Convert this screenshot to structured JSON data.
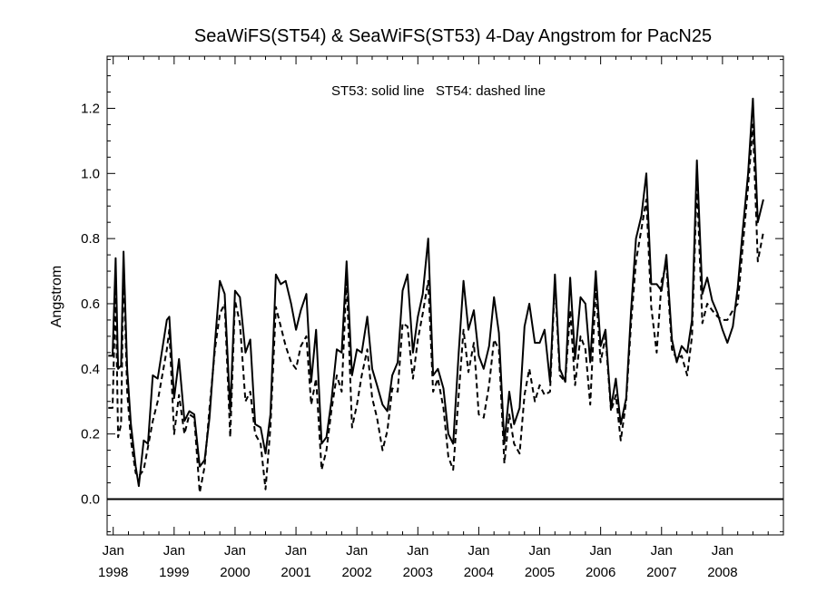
{
  "chart_data": {
    "type": "line",
    "title": "SeaWiFS(ST54) & SeaWiFS(ST53) 4-Day Angstrom for PacN25",
    "ylabel": "Angstrom",
    "xlabel": "",
    "annotation": "ST53: solid line   ST54: dashed line",
    "xlim": [
      1997.9,
      2009.0
    ],
    "ylim": [
      -0.11,
      1.36
    ],
    "yticks": [
      0.0,
      0.2,
      0.4,
      0.6,
      0.8,
      1.0,
      1.2
    ],
    "ytick_labels": [
      "0.0",
      "0.2",
      "0.4",
      "0.6",
      "0.8",
      "1.0",
      "1.2"
    ],
    "xticks": [
      {
        "value": 1998,
        "month": "Jan",
        "year": "1998"
      },
      {
        "value": 1999,
        "month": "Jan",
        "year": "1999"
      },
      {
        "value": 2000,
        "month": "Jan",
        "year": "2000"
      },
      {
        "value": 2001,
        "month": "Jan",
        "year": "2001"
      },
      {
        "value": 2002,
        "month": "Jan",
        "year": "2002"
      },
      {
        "value": 2003,
        "month": "Jan",
        "year": "2003"
      },
      {
        "value": 2004,
        "month": "Jan",
        "year": "2004"
      },
      {
        "value": 2005,
        "month": "Jan",
        "year": "2005"
      },
      {
        "value": 2006,
        "month": "Jan",
        "year": "2006"
      },
      {
        "value": 2007,
        "month": "Jan",
        "year": "2007"
      },
      {
        "value": 2008,
        "month": "Jan",
        "year": "2008"
      }
    ],
    "zero_line": 0.0,
    "grid": false,
    "series": [
      {
        "name": "ST53",
        "style": "solid",
        "color": "#000000",
        "points": [
          [
            1997.92,
            0.44
          ],
          [
            1997.99,
            0.44
          ],
          [
            1998.04,
            0.74
          ],
          [
            1998.08,
            0.4
          ],
          [
            1998.13,
            0.41
          ],
          [
            1998.17,
            0.76
          ],
          [
            1998.23,
            0.4
          ],
          [
            1998.29,
            0.23
          ],
          [
            1998.37,
            0.1
          ],
          [
            1998.42,
            0.04
          ],
          [
            1998.5,
            0.18
          ],
          [
            1998.57,
            0.17
          ],
          [
            1998.65,
            0.38
          ],
          [
            1998.73,
            0.37
          ],
          [
            1998.88,
            0.55
          ],
          [
            1998.92,
            0.56
          ],
          [
            1999.0,
            0.31
          ],
          [
            1999.08,
            0.43
          ],
          [
            1999.17,
            0.24
          ],
          [
            1999.25,
            0.27
          ],
          [
            1999.33,
            0.26
          ],
          [
            1999.42,
            0.1
          ],
          [
            1999.5,
            0.12
          ],
          [
            1999.58,
            0.25
          ],
          [
            1999.67,
            0.48
          ],
          [
            1999.75,
            0.67
          ],
          [
            1999.83,
            0.63
          ],
          [
            1999.92,
            0.27
          ],
          [
            2000.0,
            0.64
          ],
          [
            2000.08,
            0.62
          ],
          [
            2000.17,
            0.45
          ],
          [
            2000.25,
            0.49
          ],
          [
            2000.33,
            0.23
          ],
          [
            2000.42,
            0.22
          ],
          [
            2000.5,
            0.14
          ],
          [
            2000.58,
            0.26
          ],
          [
            2000.67,
            0.69
          ],
          [
            2000.75,
            0.66
          ],
          [
            2000.83,
            0.67
          ],
          [
            2000.92,
            0.6
          ],
          [
            2001.0,
            0.52
          ],
          [
            2001.08,
            0.58
          ],
          [
            2001.17,
            0.63
          ],
          [
            2001.25,
            0.36
          ],
          [
            2001.33,
            0.52
          ],
          [
            2001.42,
            0.17
          ],
          [
            2001.5,
            0.19
          ],
          [
            2001.58,
            0.3
          ],
          [
            2001.67,
            0.46
          ],
          [
            2001.75,
            0.45
          ],
          [
            2001.83,
            0.73
          ],
          [
            2001.92,
            0.38
          ],
          [
            2002.0,
            0.46
          ],
          [
            2002.08,
            0.45
          ],
          [
            2002.17,
            0.56
          ],
          [
            2002.25,
            0.4
          ],
          [
            2002.33,
            0.35
          ],
          [
            2002.42,
            0.29
          ],
          [
            2002.5,
            0.27
          ],
          [
            2002.58,
            0.38
          ],
          [
            2002.67,
            0.42
          ],
          [
            2002.75,
            0.64
          ],
          [
            2002.83,
            0.69
          ],
          [
            2002.92,
            0.45
          ],
          [
            2003.0,
            0.56
          ],
          [
            2003.08,
            0.63
          ],
          [
            2003.17,
            0.8
          ],
          [
            2003.25,
            0.38
          ],
          [
            2003.33,
            0.4
          ],
          [
            2003.42,
            0.34
          ],
          [
            2003.5,
            0.2
          ],
          [
            2003.58,
            0.17
          ],
          [
            2003.67,
            0.45
          ],
          [
            2003.75,
            0.67
          ],
          [
            2003.83,
            0.52
          ],
          [
            2003.92,
            0.58
          ],
          [
            2004.0,
            0.44
          ],
          [
            2004.08,
            0.4
          ],
          [
            2004.17,
            0.47
          ],
          [
            2004.25,
            0.62
          ],
          [
            2004.33,
            0.51
          ],
          [
            2004.42,
            0.17
          ],
          [
            2004.5,
            0.33
          ],
          [
            2004.58,
            0.23
          ],
          [
            2004.67,
            0.28
          ],
          [
            2004.75,
            0.53
          ],
          [
            2004.83,
            0.6
          ],
          [
            2004.92,
            0.48
          ],
          [
            2005.0,
            0.48
          ],
          [
            2005.08,
            0.52
          ],
          [
            2005.17,
            0.36
          ],
          [
            2005.25,
            0.69
          ],
          [
            2005.33,
            0.4
          ],
          [
            2005.42,
            0.36
          ],
          [
            2005.5,
            0.68
          ],
          [
            2005.58,
            0.43
          ],
          [
            2005.67,
            0.62
          ],
          [
            2005.75,
            0.6
          ],
          [
            2005.83,
            0.42
          ],
          [
            2005.92,
            0.7
          ],
          [
            2006.0,
            0.47
          ],
          [
            2006.08,
            0.52
          ],
          [
            2006.17,
            0.28
          ],
          [
            2006.25,
            0.37
          ],
          [
            2006.33,
            0.23
          ],
          [
            2006.42,
            0.31
          ],
          [
            2006.5,
            0.58
          ],
          [
            2006.58,
            0.8
          ],
          [
            2006.67,
            0.87
          ],
          [
            2006.75,
            1.0
          ],
          [
            2006.83,
            0.66
          ],
          [
            2006.92,
            0.66
          ],
          [
            2007.0,
            0.64
          ],
          [
            2007.08,
            0.75
          ],
          [
            2007.17,
            0.49
          ],
          [
            2007.25,
            0.42
          ],
          [
            2007.33,
            0.47
          ],
          [
            2007.42,
            0.45
          ],
          [
            2007.5,
            0.55
          ],
          [
            2007.58,
            1.04
          ],
          [
            2007.67,
            0.63
          ],
          [
            2007.75,
            0.68
          ],
          [
            2007.83,
            0.61
          ],
          [
            2007.92,
            0.57
          ],
          [
            2008.0,
            0.52
          ],
          [
            2008.08,
            0.48
          ],
          [
            2008.17,
            0.53
          ],
          [
            2008.25,
            0.65
          ],
          [
            2008.33,
            0.82
          ],
          [
            2008.42,
            1.0
          ],
          [
            2008.5,
            1.23
          ],
          [
            2008.58,
            0.85
          ],
          [
            2008.67,
            0.92
          ]
        ]
      },
      {
        "name": "ST54",
        "style": "dashed",
        "color": "#000000",
        "points": [
          [
            1997.92,
            0.28
          ],
          [
            1997.99,
            0.28
          ],
          [
            1998.04,
            0.65
          ],
          [
            1998.08,
            0.19
          ],
          [
            1998.13,
            0.23
          ],
          [
            1998.17,
            0.72
          ],
          [
            1998.23,
            0.33
          ],
          [
            1998.29,
            0.18
          ],
          [
            1998.37,
            0.08
          ],
          [
            1998.42,
            0.07
          ],
          [
            1998.5,
            0.09
          ],
          [
            1998.57,
            0.16
          ],
          [
            1998.65,
            0.24
          ],
          [
            1998.73,
            0.3
          ],
          [
            1998.88,
            0.46
          ],
          [
            1998.92,
            0.52
          ],
          [
            1999.0,
            0.2
          ],
          [
            1999.08,
            0.32
          ],
          [
            1999.17,
            0.2
          ],
          [
            1999.25,
            0.26
          ],
          [
            1999.33,
            0.25
          ],
          [
            1999.42,
            0.02
          ],
          [
            1999.5,
            0.1
          ],
          [
            1999.58,
            0.28
          ],
          [
            1999.67,
            0.46
          ],
          [
            1999.75,
            0.57
          ],
          [
            1999.83,
            0.6
          ],
          [
            1999.92,
            0.19
          ],
          [
            2000.0,
            0.61
          ],
          [
            2000.08,
            0.54
          ],
          [
            2000.17,
            0.3
          ],
          [
            2000.25,
            0.33
          ],
          [
            2000.33,
            0.2
          ],
          [
            2000.42,
            0.17
          ],
          [
            2000.5,
            0.03
          ],
          [
            2000.58,
            0.22
          ],
          [
            2000.67,
            0.59
          ],
          [
            2000.75,
            0.53
          ],
          [
            2000.83,
            0.47
          ],
          [
            2000.92,
            0.42
          ],
          [
            2001.0,
            0.4
          ],
          [
            2001.08,
            0.47
          ],
          [
            2001.17,
            0.5
          ],
          [
            2001.25,
            0.29
          ],
          [
            2001.33,
            0.37
          ],
          [
            2001.42,
            0.09
          ],
          [
            2001.5,
            0.15
          ],
          [
            2001.58,
            0.27
          ],
          [
            2001.67,
            0.38
          ],
          [
            2001.75,
            0.33
          ],
          [
            2001.83,
            0.68
          ],
          [
            2001.92,
            0.22
          ],
          [
            2002.0,
            0.29
          ],
          [
            2002.08,
            0.38
          ],
          [
            2002.17,
            0.46
          ],
          [
            2002.25,
            0.31
          ],
          [
            2002.33,
            0.25
          ],
          [
            2002.42,
            0.15
          ],
          [
            2002.5,
            0.21
          ],
          [
            2002.58,
            0.34
          ],
          [
            2002.67,
            0.33
          ],
          [
            2002.75,
            0.54
          ],
          [
            2002.83,
            0.53
          ],
          [
            2002.92,
            0.37
          ],
          [
            2003.0,
            0.49
          ],
          [
            2003.08,
            0.57
          ],
          [
            2003.17,
            0.67
          ],
          [
            2003.25,
            0.33
          ],
          [
            2003.33,
            0.37
          ],
          [
            2003.42,
            0.28
          ],
          [
            2003.5,
            0.13
          ],
          [
            2003.58,
            0.09
          ],
          [
            2003.67,
            0.32
          ],
          [
            2003.75,
            0.52
          ],
          [
            2003.83,
            0.39
          ],
          [
            2003.92,
            0.48
          ],
          [
            2004.0,
            0.26
          ],
          [
            2004.08,
            0.25
          ],
          [
            2004.17,
            0.35
          ],
          [
            2004.25,
            0.49
          ],
          [
            2004.33,
            0.46
          ],
          [
            2004.42,
            0.11
          ],
          [
            2004.5,
            0.26
          ],
          [
            2004.58,
            0.17
          ],
          [
            2004.67,
            0.14
          ],
          [
            2004.75,
            0.32
          ],
          [
            2004.83,
            0.4
          ],
          [
            2004.92,
            0.3
          ],
          [
            2005.0,
            0.35
          ],
          [
            2005.08,
            0.32
          ],
          [
            2005.17,
            0.33
          ],
          [
            2005.25,
            0.67
          ],
          [
            2005.33,
            0.38
          ],
          [
            2005.42,
            0.36
          ],
          [
            2005.5,
            0.58
          ],
          [
            2005.58,
            0.35
          ],
          [
            2005.67,
            0.5
          ],
          [
            2005.75,
            0.46
          ],
          [
            2005.83,
            0.29
          ],
          [
            2005.92,
            0.65
          ],
          [
            2006.0,
            0.42
          ],
          [
            2006.08,
            0.5
          ],
          [
            2006.17,
            0.27
          ],
          [
            2006.25,
            0.32
          ],
          [
            2006.33,
            0.18
          ],
          [
            2006.42,
            0.3
          ],
          [
            2006.5,
            0.54
          ],
          [
            2006.58,
            0.73
          ],
          [
            2006.67,
            0.83
          ],
          [
            2006.75,
            0.92
          ],
          [
            2006.83,
            0.59
          ],
          [
            2006.92,
            0.45
          ],
          [
            2007.0,
            0.67
          ],
          [
            2007.08,
            0.72
          ],
          [
            2007.17,
            0.46
          ],
          [
            2007.25,
            0.43
          ],
          [
            2007.33,
            0.44
          ],
          [
            2007.42,
            0.38
          ],
          [
            2007.5,
            0.5
          ],
          [
            2007.58,
            0.97
          ],
          [
            2007.67,
            0.54
          ],
          [
            2007.75,
            0.6
          ],
          [
            2007.83,
            0.58
          ],
          [
            2007.92,
            0.56
          ],
          [
            2008.0,
            0.55
          ],
          [
            2008.08,
            0.55
          ],
          [
            2008.17,
            0.58
          ],
          [
            2008.25,
            0.6
          ],
          [
            2008.33,
            0.77
          ],
          [
            2008.42,
            0.96
          ],
          [
            2008.5,
            1.15
          ],
          [
            2008.58,
            0.73
          ],
          [
            2008.67,
            0.82
          ]
        ]
      }
    ]
  }
}
